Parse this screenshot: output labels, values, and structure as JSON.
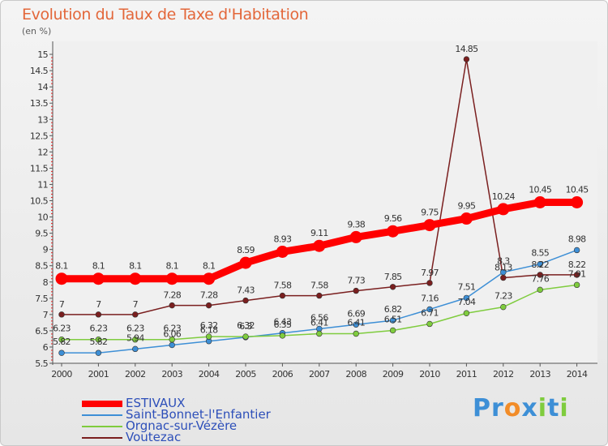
{
  "chart_data": {
    "type": "line",
    "title": "Evolution du Taux de Taxe d'Habitation",
    "subtitle": "(en %)",
    "xlabel": "",
    "ylabel": "",
    "categories": [
      "2000",
      "2001",
      "2002",
      "2003",
      "2004",
      "2005",
      "2006",
      "2007",
      "2008",
      "2009",
      "2010",
      "2011",
      "2012",
      "2013",
      "2014"
    ],
    "ylim": [
      5.5,
      15
    ],
    "yticks": [
      "5.5",
      "6",
      "6.5",
      "7",
      "7.5",
      "8",
      "8.5",
      "9",
      "9.5",
      "10",
      "10.5",
      "11",
      "11.5",
      "12",
      "12.5",
      "13",
      "13.5",
      "14",
      "14.5",
      "15"
    ],
    "grid": false,
    "legend_position": "bottom-left",
    "series": [
      {
        "name": "ESTIVAUX",
        "color": "#ff0000",
        "values": [
          8.1,
          8.1,
          8.1,
          8.1,
          8.1,
          8.59,
          8.93,
          9.11,
          9.38,
          9.56,
          9.75,
          9.95,
          10.24,
          10.45,
          10.45
        ],
        "labels": [
          "8.1",
          "8.1",
          "8.1",
          "8.1",
          "8.1",
          "8.59",
          "8.93",
          "9.11",
          "9.38",
          "9.56",
          "9.75",
          "9.95",
          "10.24",
          "10.45",
          "10.45"
        ]
      },
      {
        "name": "Saint-Bonnet-l'Enfantier",
        "color": "#3d8fd6",
        "values": [
          5.82,
          5.82,
          5.94,
          6.06,
          6.18,
          6.3,
          6.43,
          6.56,
          6.69,
          6.82,
          7.16,
          7.51,
          8.3,
          8.55,
          8.98
        ],
        "labels": [
          "5.82",
          "5.82",
          "5.94",
          "6.06",
          "6.18",
          "6.3",
          "6.43",
          "6.56",
          "6.69",
          "6.82",
          "7.16",
          "7.51",
          "8.3",
          "8.55",
          "8.98"
        ]
      },
      {
        "name": "Orgnac-sur-Vézère",
        "color": "#7fcc3e",
        "values": [
          6.23,
          6.23,
          6.23,
          6.23,
          6.32,
          6.32,
          6.35,
          6.41,
          6.41,
          6.51,
          6.71,
          7.04,
          7.23,
          7.76,
          7.91
        ],
        "labels": [
          "6.23",
          "6.23",
          "6.23",
          "6.23",
          "6.32",
          "6.32",
          "6.35",
          "6.41",
          "6.41",
          "6.51",
          "6.71",
          "7.04",
          "7.23",
          "7.76",
          "7.91"
        ]
      },
      {
        "name": "Voutezac",
        "color": "#7a1f1f",
        "values": [
          7,
          7,
          7,
          7.28,
          7.28,
          7.43,
          7.58,
          7.58,
          7.73,
          7.85,
          7.97,
          14.85,
          8.13,
          8.22,
          8.22
        ],
        "labels": [
          "7",
          "7",
          "7",
          "7.28",
          "7.28",
          "7.43",
          "7.58",
          "7.58",
          "7.73",
          "7.85",
          "7.97",
          "14.85",
          "8.13",
          "8.22",
          "8.22"
        ]
      }
    ]
  },
  "logo": {
    "text": "Proxiti",
    "letters": [
      "P",
      "r",
      "o",
      "x",
      "i",
      "t",
      "i"
    ],
    "colors": [
      "#3d8fd6",
      "#3d8fd6",
      "#f28c28",
      "#3d8fd6",
      "#7fcc3e",
      "#3d8fd6",
      "#7fcc3e"
    ]
  }
}
